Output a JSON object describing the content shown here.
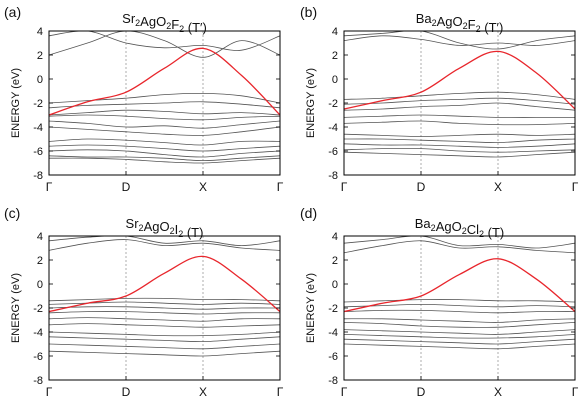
{
  "figure": {
    "panels": [
      {
        "label": "(a)",
        "title": {
          "parts": [
            [
              "Sr",
              ""
            ],
            [
              "2",
              "sub"
            ],
            [
              "AgO",
              ""
            ],
            [
              "2",
              "sub"
            ],
            [
              "F",
              ""
            ],
            [
              "2",
              "sub"
            ],
            [
              " (T′)",
              ""
            ]
          ]
        }
      },
      {
        "label": "(b)",
        "title": {
          "parts": [
            [
              "Ba",
              ""
            ],
            [
              "2",
              "sub"
            ],
            [
              "AgO",
              ""
            ],
            [
              "2",
              "sub"
            ],
            [
              "F",
              ""
            ],
            [
              "2",
              "sub"
            ],
            [
              " (T′)",
              ""
            ]
          ]
        }
      },
      {
        "label": "(c)",
        "title": {
          "parts": [
            [
              "Sr",
              ""
            ],
            [
              "2",
              "sub"
            ],
            [
              "AgO",
              ""
            ],
            [
              "2",
              "sub"
            ],
            [
              "I",
              ""
            ],
            [
              "2",
              "sub"
            ],
            [
              " (T)",
              ""
            ]
          ]
        }
      },
      {
        "label": "(d)",
        "title": {
          "parts": [
            [
              "Ba",
              ""
            ],
            [
              "2",
              "sub"
            ],
            [
              "AgO",
              ""
            ],
            [
              "2",
              "sub"
            ],
            [
              "Cl",
              ""
            ],
            [
              "2",
              "sub"
            ],
            [
              " (T)",
              ""
            ]
          ]
        }
      }
    ]
  },
  "colors": {
    "highlight": "#e8262c",
    "bands": "#555555",
    "frame": "#000000",
    "guide": "#9a9a9a"
  },
  "chart_data": [
    {
      "type": "line",
      "panel": "(a)",
      "ylabel": "ENERGY (eV)",
      "ylim": [
        -8,
        4
      ],
      "yticks": [
        4,
        2,
        0,
        -2,
        -4,
        -6,
        -8
      ],
      "x": [
        0,
        0.5,
        1,
        1.5,
        2,
        2.5,
        3
      ],
      "xticklabels": [
        "Γ",
        "D",
        "X",
        "Γ"
      ],
      "xticks": [
        0,
        1,
        2,
        3
      ],
      "highlight_band": [
        -3.0,
        -1.9,
        -1.1,
        0.9,
        2.55,
        0.3,
        -3.0
      ],
      "other_bands": [
        [
          2.0,
          3.0,
          4.0,
          3.2,
          1.8,
          3.2,
          2.0
        ],
        [
          3.6,
          4.0,
          3.0,
          2.6,
          2.8,
          2.4,
          3.6
        ],
        [
          -2.0,
          -1.8,
          -1.6,
          -1.3,
          -1.2,
          -1.4,
          -2.0
        ],
        [
          -2.4,
          -2.2,
          -2.1,
          -2.0,
          -1.9,
          -2.1,
          -2.4
        ],
        [
          -3.0,
          -2.8,
          -2.6,
          -2.7,
          -2.9,
          -2.8,
          -3.0
        ],
        [
          -3.1,
          -3.0,
          -3.1,
          -3.3,
          -3.4,
          -3.2,
          -3.1
        ],
        [
          -3.5,
          -3.7,
          -4.0,
          -3.9,
          -4.1,
          -3.8,
          -3.5
        ],
        [
          -4.0,
          -4.2,
          -4.4,
          -4.6,
          -4.7,
          -4.4,
          -4.0
        ],
        [
          -5.2,
          -5.0,
          -5.1,
          -5.3,
          -5.5,
          -5.2,
          -5.2
        ],
        [
          -5.6,
          -5.5,
          -5.6,
          -5.8,
          -6.0,
          -5.8,
          -5.6
        ],
        [
          -6.0,
          -5.9,
          -6.0,
          -6.3,
          -6.5,
          -6.2,
          -6.0
        ],
        [
          -6.4,
          -6.5,
          -6.5,
          -6.6,
          -6.8,
          -6.6,
          -6.4
        ],
        [
          -6.6,
          -6.6,
          -6.7,
          -6.9,
          -7.0,
          -6.8,
          -6.6
        ]
      ]
    },
    {
      "type": "line",
      "panel": "(b)",
      "ylabel": "ENERGY (eV)",
      "ylim": [
        -8,
        4
      ],
      "yticks": [
        4,
        2,
        0,
        -2,
        -4,
        -6,
        -8
      ],
      "x": [
        0,
        0.5,
        1,
        1.5,
        2,
        2.5,
        3
      ],
      "xticklabels": [
        "Γ",
        "D",
        "X",
        "Γ"
      ],
      "xticks": [
        0,
        1,
        2,
        3
      ],
      "highlight_band": [
        -2.5,
        -1.8,
        -1.1,
        0.9,
        2.3,
        0.5,
        -2.5
      ],
      "other_bands": [
        [
          3.6,
          3.8,
          4.0,
          3.0,
          2.5,
          3.2,
          3.6
        ],
        [
          3.2,
          3.6,
          3.3,
          2.8,
          3.0,
          2.8,
          3.2
        ],
        [
          -1.7,
          -1.6,
          -1.4,
          -1.2,
          -1.1,
          -1.3,
          -1.7
        ],
        [
          -2.1,
          -2.0,
          -1.8,
          -1.7,
          -1.6,
          -1.8,
          -2.1
        ],
        [
          -2.6,
          -2.5,
          -2.3,
          -2.2,
          -2.0,
          -2.3,
          -2.6
        ],
        [
          -3.2,
          -3.1,
          -3.0,
          -3.1,
          -3.2,
          -3.2,
          -3.2
        ],
        [
          -3.7,
          -3.6,
          -3.5,
          -3.7,
          -3.8,
          -3.8,
          -3.7
        ],
        [
          -4.6,
          -4.7,
          -4.8,
          -4.7,
          -4.6,
          -4.7,
          -4.6
        ],
        [
          -5.0,
          -5.0,
          -5.1,
          -5.2,
          -5.3,
          -5.1,
          -5.0
        ],
        [
          -5.4,
          -5.5,
          -5.5,
          -5.6,
          -5.7,
          -5.6,
          -5.4
        ],
        [
          -5.9,
          -5.8,
          -5.8,
          -6.0,
          -6.1,
          -6.0,
          -5.9
        ],
        [
          -6.1,
          -6.2,
          -6.3,
          -6.4,
          -6.5,
          -6.3,
          -6.1
        ]
      ]
    },
    {
      "type": "line",
      "panel": "(c)",
      "ylabel": "ENERGY (eV)",
      "ylim": [
        -8,
        4
      ],
      "yticks": [
        4,
        2,
        0,
        -2,
        -4,
        -6,
        -8
      ],
      "x": [
        0,
        0.5,
        1,
        1.5,
        2,
        2.5,
        3
      ],
      "xticklabels": [
        "Γ",
        "D",
        "X",
        "Γ"
      ],
      "xticks": [
        0,
        1,
        2,
        3
      ],
      "highlight_band": [
        -2.3,
        -1.6,
        -1.0,
        0.9,
        2.3,
        0.4,
        -2.3
      ],
      "other_bands": [
        [
          3.6,
          3.9,
          4.0,
          3.4,
          3.6,
          3.2,
          3.6
        ],
        [
          2.8,
          3.4,
          3.7,
          3.2,
          3.4,
          3.0,
          2.8
        ],
        [
          -1.4,
          -1.3,
          -1.2,
          -1.2,
          -1.3,
          -1.3,
          -1.4
        ],
        [
          -1.7,
          -1.6,
          -1.5,
          -1.6,
          -1.7,
          -1.6,
          -1.7
        ],
        [
          -2.0,
          -1.9,
          -1.9,
          -2.0,
          -2.1,
          -2.0,
          -2.0
        ],
        [
          -2.4,
          -2.3,
          -2.3,
          -2.4,
          -2.5,
          -2.4,
          -2.4
        ],
        [
          -2.9,
          -2.8,
          -2.9,
          -3.0,
          -3.1,
          -2.9,
          -2.9
        ],
        [
          -3.4,
          -3.3,
          -3.4,
          -3.5,
          -3.6,
          -3.5,
          -3.4
        ],
        [
          -4.0,
          -4.1,
          -4.2,
          -4.3,
          -4.3,
          -4.2,
          -4.0
        ],
        [
          -4.4,
          -4.5,
          -4.6,
          -4.7,
          -4.8,
          -4.6,
          -4.4
        ],
        [
          -5.0,
          -5.1,
          -5.2,
          -5.3,
          -5.4,
          -5.2,
          -5.0
        ],
        [
          -5.6,
          -5.7,
          -5.8,
          -5.9,
          -6.0,
          -5.8,
          -5.6
        ]
      ]
    },
    {
      "type": "line",
      "panel": "(d)",
      "ylabel": "ENERGY (eV)",
      "ylim": [
        -8,
        4
      ],
      "yticks": [
        4,
        2,
        0,
        -2,
        -4,
        -6,
        -8
      ],
      "x": [
        0,
        0.5,
        1,
        1.5,
        2,
        2.5,
        3
      ],
      "xticklabels": [
        "Γ",
        "D",
        "X",
        "Γ"
      ],
      "xticks": [
        0,
        1,
        2,
        3
      ],
      "highlight_band": [
        -2.3,
        -1.6,
        -1.0,
        0.8,
        2.1,
        0.4,
        -2.3
      ],
      "other_bands": [
        [
          3.4,
          3.7,
          4.0,
          3.2,
          3.3,
          3.0,
          3.4
        ],
        [
          2.6,
          3.2,
          3.6,
          3.0,
          3.1,
          2.8,
          2.6
        ],
        [
          -1.5,
          -1.4,
          -1.3,
          -1.3,
          -1.4,
          -1.4,
          -1.5
        ],
        [
          -1.9,
          -1.8,
          -1.7,
          -1.8,
          -1.9,
          -1.8,
          -1.9
        ],
        [
          -2.3,
          -2.2,
          -2.2,
          -2.3,
          -2.4,
          -2.3,
          -2.3
        ],
        [
          -2.9,
          -2.9,
          -3.0,
          -3.1,
          -3.2,
          -3.0,
          -2.9
        ],
        [
          -3.2,
          -3.3,
          -3.5,
          -3.6,
          -3.6,
          -3.4,
          -3.2
        ],
        [
          -3.8,
          -3.9,
          -4.0,
          -4.1,
          -4.2,
          -4.0,
          -3.8
        ],
        [
          -4.2,
          -4.3,
          -4.4,
          -4.5,
          -4.5,
          -4.4,
          -4.2
        ],
        [
          -4.6,
          -4.7,
          -4.8,
          -4.9,
          -5.0,
          -4.8,
          -4.6
        ],
        [
          -5.0,
          -5.1,
          -5.2,
          -5.3,
          -5.4,
          -5.2,
          -5.0
        ]
      ]
    }
  ]
}
